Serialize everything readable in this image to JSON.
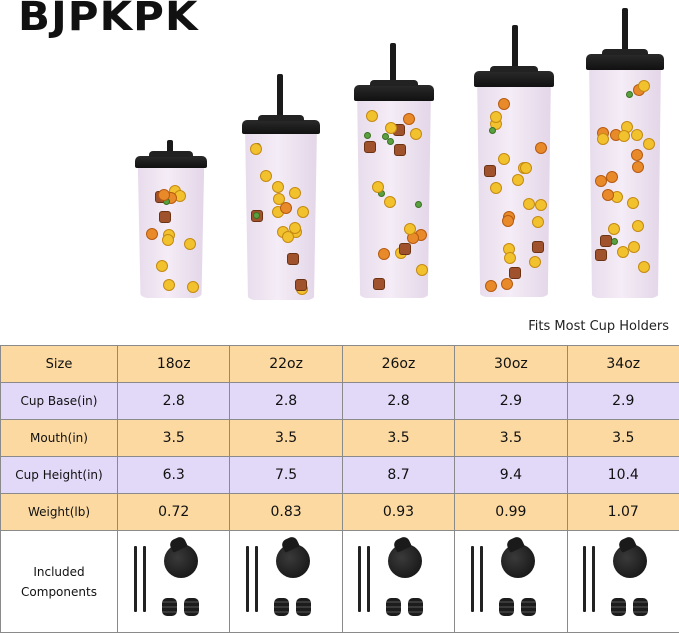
{
  "brand": {
    "logo_text": "BJPKPK"
  },
  "cups_image": {
    "cups": [
      {
        "size": "18oz"
      },
      {
        "size": "22oz"
      },
      {
        "size": "26oz"
      },
      {
        "size": "30oz"
      },
      {
        "size": "34oz"
      }
    ]
  },
  "caption": "Fits Most Cup Holders",
  "table": {
    "header": {
      "label": "Size",
      "values": [
        "18oz",
        "22oz",
        "26oz",
        "30oz",
        "34oz"
      ]
    },
    "rows": [
      {
        "label": "Cup Base(in)",
        "values": [
          "2.8",
          "2.8",
          "2.8",
          "2.9",
          "2.9"
        ],
        "color": "#e2d8f8"
      },
      {
        "label": "Mouth(in)",
        "values": [
          "3.5",
          "3.5",
          "3.5",
          "3.5",
          "3.5"
        ],
        "color": "#fbd9a0"
      },
      {
        "label": "Cup Height(in)",
        "values": [
          "6.3",
          "7.5",
          "8.7",
          "9.4",
          "10.4"
        ],
        "color": "#e2d8f8"
      },
      {
        "label": "Weight(lb)",
        "values": [
          "0.72",
          "0.83",
          "0.93",
          "0.99",
          "1.07"
        ],
        "color": "#fbd9a0"
      }
    ],
    "components": {
      "label_line1": "Included",
      "label_line2": "Components",
      "items": [
        "2 straws",
        "1 lid",
        "2 plugs"
      ]
    }
  },
  "colors": {
    "orange_row": "#fbd9a0",
    "purple_row": "#e2d8f8",
    "border": "#8a8a8a"
  }
}
